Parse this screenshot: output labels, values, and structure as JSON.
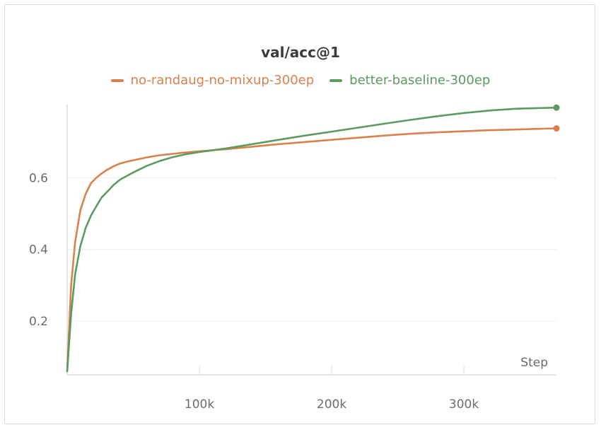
{
  "chart_data": {
    "type": "line",
    "title": "val/acc@1",
    "xlabel": "Step",
    "ylabel": "",
    "xlim": [
      0,
      370000
    ],
    "ylim": [
      0.05,
      0.82
    ],
    "x_ticks": [
      {
        "value": 100000,
        "label": "100k"
      },
      {
        "value": 200000,
        "label": "200k"
      },
      {
        "value": 300000,
        "label": "300k"
      }
    ],
    "y_ticks": [
      {
        "value": 0.2,
        "label": "0.2"
      },
      {
        "value": 0.4,
        "label": "0.4"
      },
      {
        "value": 0.6,
        "label": "0.6"
      }
    ],
    "grid": true,
    "legend_position": "top-center",
    "series": [
      {
        "name": "no-randaug-no-mixup-300ep",
        "color": "#d9804c",
        "x": [
          0,
          3000,
          6000,
          10000,
          14000,
          18000,
          22000,
          26000,
          30000,
          35000,
          40000,
          45000,
          50000,
          60000,
          70000,
          80000,
          90000,
          100000,
          110000,
          120000,
          140000,
          160000,
          180000,
          200000,
          220000,
          240000,
          260000,
          280000,
          300000,
          320000,
          340000,
          360000,
          370000
        ],
        "values": [
          0.06,
          0.3,
          0.42,
          0.51,
          0.555,
          0.585,
          0.6,
          0.612,
          0.622,
          0.632,
          0.64,
          0.645,
          0.649,
          0.657,
          0.663,
          0.667,
          0.671,
          0.674,
          0.677,
          0.68,
          0.687,
          0.694,
          0.7,
          0.706,
          0.712,
          0.718,
          0.723,
          0.727,
          0.73,
          0.733,
          0.735,
          0.737,
          0.738
        ]
      },
      {
        "name": "better-baseline-300ep",
        "color": "#5c9a60",
        "x": [
          0,
          3000,
          6000,
          10000,
          14000,
          18000,
          22000,
          26000,
          30000,
          35000,
          40000,
          45000,
          50000,
          60000,
          70000,
          80000,
          90000,
          100000,
          110000,
          120000,
          140000,
          160000,
          180000,
          200000,
          220000,
          240000,
          260000,
          280000,
          300000,
          320000,
          340000,
          360000,
          370000
        ],
        "values": [
          0.06,
          0.22,
          0.33,
          0.41,
          0.46,
          0.495,
          0.52,
          0.545,
          0.56,
          0.58,
          0.595,
          0.605,
          0.615,
          0.633,
          0.647,
          0.658,
          0.666,
          0.672,
          0.677,
          0.682,
          0.694,
          0.706,
          0.718,
          0.729,
          0.74,
          0.751,
          0.762,
          0.772,
          0.781,
          0.788,
          0.793,
          0.795,
          0.796
        ]
      }
    ]
  }
}
